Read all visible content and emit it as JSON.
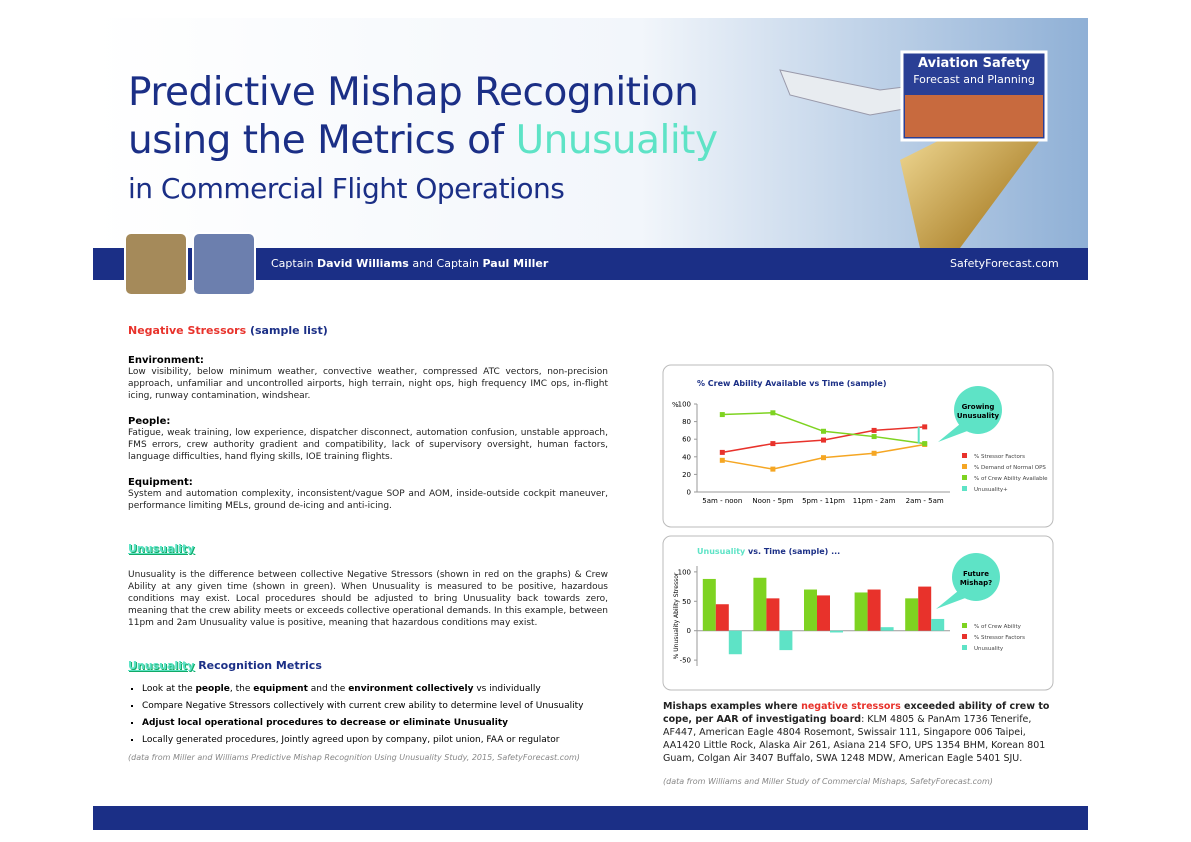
{
  "header": {
    "title_line1": "Predictive Mishap Recognition",
    "title_line2": "using the Metrics of ",
    "title_highlight": "Unusuality",
    "title_line3": "in Commercial Flight Operations"
  },
  "badge": {
    "line1": "Aviation Safety",
    "line2": "Forecast and Planning"
  },
  "authors": [
    {
      "t": "Captain "
    },
    {
      "t": "David Williams",
      "b": true
    },
    {
      "t": " and Captain "
    },
    {
      "t": "Paul Miller",
      "b": true
    }
  ],
  "website": "SafetyForecast.com",
  "stressors": {
    "heading": [
      {
        "t": "Negative Stressors",
        "c": "#e8322b"
      },
      {
        "t": " (sample list)",
        "c": "#1b2f86"
      }
    ],
    "groups": [
      {
        "title": "Environment:",
        "text": "Low visibility, below minimum weather, convective weather, compressed ATC vectors, non-precision approach, unfamiliar and uncontrolled airports, high terrain, night ops, high frequency IMC ops, in-flight icing, runway contamination, windshear."
      },
      {
        "title": "People:",
        "text": "Fatigue, weak training, low experience, dispatcher disconnect, automation confusion, unstable approach, FMS errors, crew authority gradient and compatibility, lack of supervisory oversight, human factors, language difficulties, hand flying skills, IOE training flights."
      },
      {
        "title": "Equipment:",
        "text": "System and automation complexity, inconsistent/vague SOP and AOM, inside-outside cockpit maneuver, performance limiting MELs, ground de-icing and anti-icing."
      }
    ]
  },
  "unusuality": {
    "heading": "Unusuality",
    "text": "Unusuality is the difference between collective Negative Stressors (shown in red on the graphs) & Crew Ability at any given time (shown in green). When Unusuality is measured to be positive, hazardous conditions may exist. Local procedures should be adjusted to bring Unusuality back towards zero, meaning that the crew ability meets or exceeds collective operational demands. In this example, between 11pm and 2am Unusuality value is positive, meaning that hazardous conditions may exist."
  },
  "metrics": {
    "heading_highlight": "Unusuality",
    "heading_rest": " Recognition Metrics",
    "bullets": [
      [
        {
          "t": "Look at the "
        },
        {
          "t": "people",
          "b": true
        },
        {
          "t": ", the "
        },
        {
          "t": "equipment",
          "b": true
        },
        {
          "t": " and the "
        },
        {
          "t": "environment collectively",
          "b": true
        },
        {
          "t": " vs individually"
        }
      ],
      [
        {
          "t": "Compare Negative Stressors collectively with current crew ability to determine level of Unusuality"
        }
      ],
      [
        {
          "t": "Adjust local operational procedures to decrease or eliminate Unusuality",
          "b": true
        }
      ],
      [
        {
          "t": "Locally generated procedures, Jointly agreed upon by company, pilot union, FAA or regulator"
        }
      ]
    ],
    "source": "(data from Miller and Williams  Predictive Mishap Recognition Using Unusuality Study, 2015, SafetyForecast.com)"
  },
  "mishaps": {
    "text": [
      {
        "t": "Mishaps examples where ",
        "b": true
      },
      {
        "t": "negative stressors",
        "b": true,
        "c": "#e8322b"
      },
      {
        "t": " exceeded ability of crew to cope, per AAR of investigating board",
        "b": true
      },
      {
        "t": ":  KLM 4805 & PanAm 1736 Tenerife, AF447, American Eagle 4804 Rosemont, Swissair 111, Singapore 006 Taipei, AA1420 Little Rock, Alaska Air 261, Asiana 214 SFO, UPS 1354 BHM, Korean 801 Guam, Colgan Air 3407 Buffalo,  SWA 1248 MDW, American Eagle 5401 SJU."
      }
    ],
    "source": "(data from Williams and Miller Study of Commercial Mishaps, SafetyForecast.com)"
  },
  "chart_data": [
    {
      "type": "line",
      "title": "% Crew Ability  Available vs Time (sample)",
      "y_label": "%",
      "categories": [
        "5am - noon",
        "Noon - 5pm",
        "5pm - 11pm",
        "11pm - 2am",
        "2am - 5am"
      ],
      "ylim": [
        0,
        100
      ],
      "yticks": [
        0,
        20,
        40,
        60,
        80,
        100
      ],
      "annotation": "Growing Unusuality",
      "series": [
        {
          "name": "% Stressor Factors",
          "color": "#e8322b",
          "values": [
            45,
            55,
            59,
            70,
            74
          ]
        },
        {
          "name": "% Demand of Normal OPS",
          "color": "#f5a623",
          "values": [
            36,
            26,
            39,
            44,
            54
          ]
        },
        {
          "name": "% of Crew Ability Available",
          "color": "#7ed321",
          "values": [
            88,
            90,
            69,
            63,
            55
          ]
        },
        {
          "name": "Unusuality+",
          "color": "#5ee3c6",
          "values": [
            null,
            null,
            null,
            null,
            19
          ]
        }
      ]
    },
    {
      "type": "bar",
      "title_highlight": "Unusuality",
      "title": " vs. Time (sample) ...",
      "y_label": "% Unusuality Ability Stressor",
      "categories": [
        null,
        null,
        null,
        null,
        null
      ],
      "ylim": [
        -60,
        110
      ],
      "yticks": [
        -50,
        0,
        50,
        100
      ],
      "annotation": "Future Mishap?",
      "series": [
        {
          "name": "% of Crew Ability",
          "color": "#7ed321",
          "values": [
            88,
            90,
            70,
            65,
            55
          ]
        },
        {
          "name": "% Stressor Factors",
          "color": "#e8322b",
          "values": [
            45,
            55,
            60,
            70,
            75
          ]
        },
        {
          "name": "Unusuality",
          "color": "#5ee3c6",
          "values": [
            -40,
            -33,
            -3,
            6,
            20
          ]
        }
      ]
    }
  ]
}
